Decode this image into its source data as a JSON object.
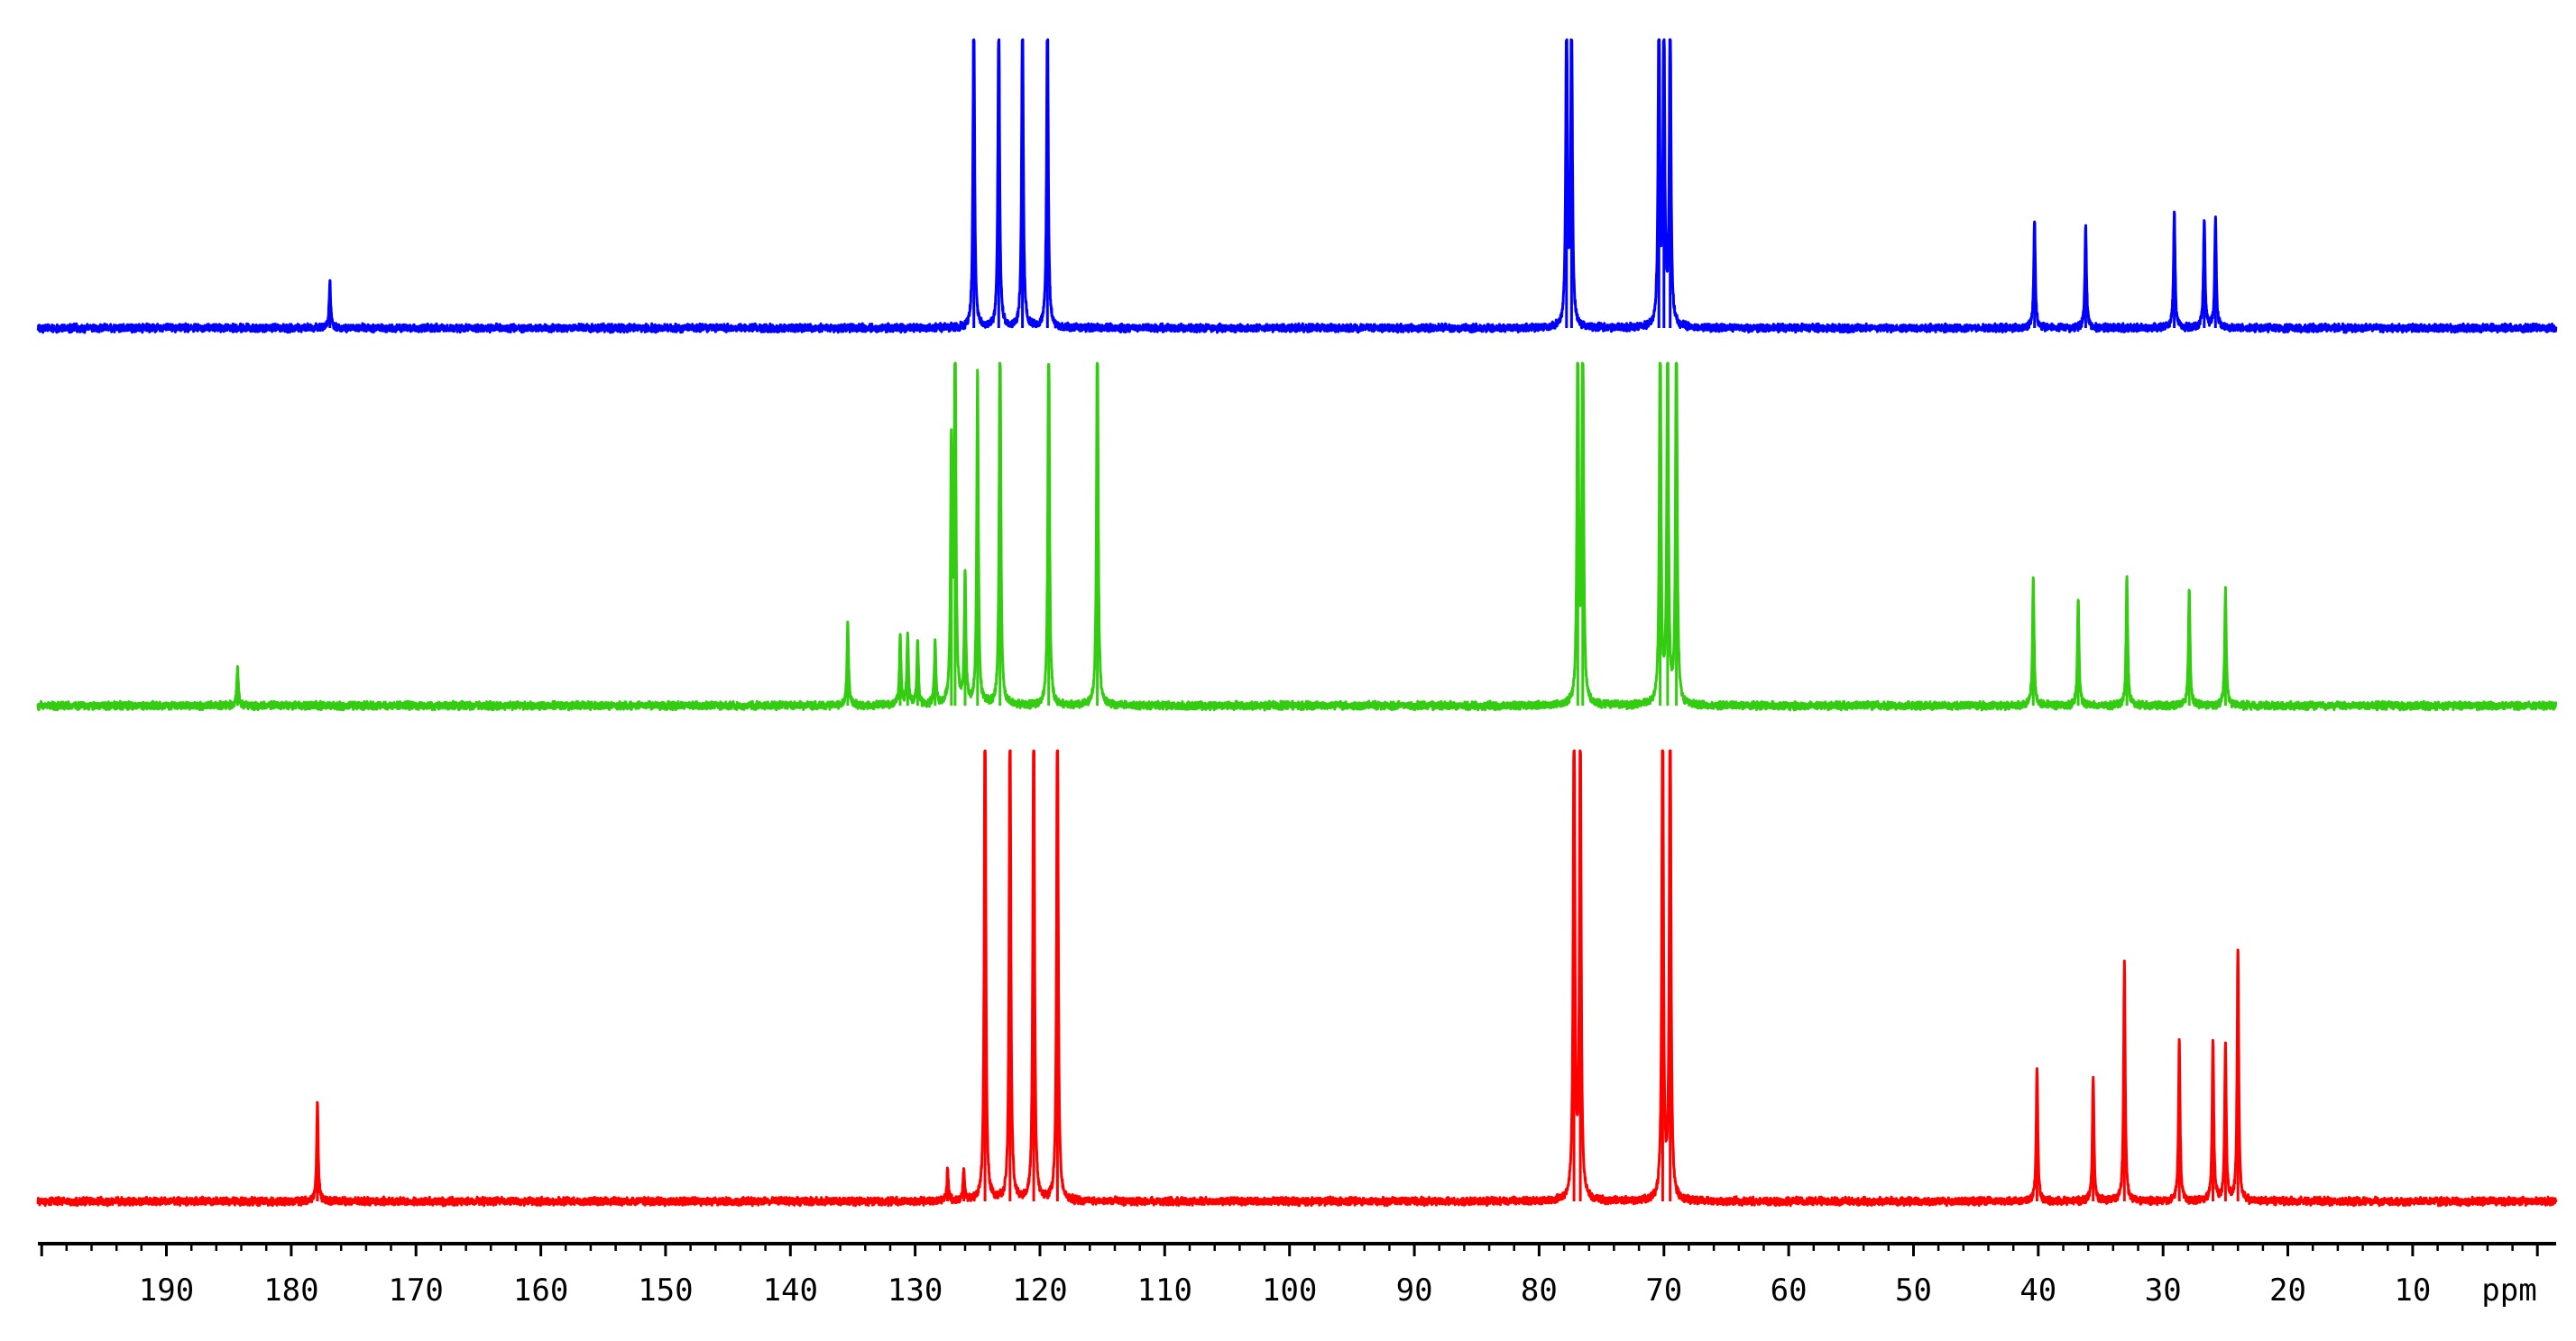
{
  "chart_data": {
    "type": "line",
    "title": "",
    "xlabel": "ppm",
    "ylabel": "",
    "x_axis_reversed": true,
    "xlim": [
      200.3,
      -1.5
    ],
    "major_ticks": [
      190,
      180,
      170,
      160,
      150,
      140,
      130,
      120,
      110,
      100,
      90,
      80,
      70,
      60,
      50,
      40,
      30,
      20,
      10
    ],
    "tick_labels": [
      "190",
      "180",
      "170",
      "160",
      "150",
      "140",
      "130",
      "120",
      "110",
      "100",
      "90",
      "80",
      "70",
      "60",
      "50",
      "40",
      "30",
      "20",
      "10"
    ],
    "unit_label": "ppm",
    "grid": false,
    "legend": "none",
    "series": [
      {
        "color": "#0000ff",
        "peaks": [
          {
            "ppm": 176.9,
            "height": 0.14
          },
          {
            "ppm": 125.3,
            "height": 1.0
          },
          {
            "ppm": 123.3,
            "height": 1.0
          },
          {
            "ppm": 121.4,
            "height": 1.0
          },
          {
            "ppm": 119.4,
            "height": 1.0
          },
          {
            "ppm": 77.8,
            "height": 1.0
          },
          {
            "ppm": 77.4,
            "height": 1.0
          },
          {
            "ppm": 70.4,
            "height": 1.0
          },
          {
            "ppm": 70.0,
            "height": 1.0
          },
          {
            "ppm": 69.5,
            "height": 1.0
          },
          {
            "ppm": 40.3,
            "height": 0.33
          },
          {
            "ppm": 36.2,
            "height": 0.31
          },
          {
            "ppm": 29.1,
            "height": 0.35
          },
          {
            "ppm": 26.7,
            "height": 0.33
          },
          {
            "ppm": 25.8,
            "height": 0.33
          }
        ]
      },
      {
        "color": "#33cc11",
        "peaks": [
          {
            "ppm": 184.3,
            "height": 0.1
          },
          {
            "ppm": 135.4,
            "height": 0.21
          },
          {
            "ppm": 131.2,
            "height": 0.18
          },
          {
            "ppm": 130.6,
            "height": 0.18
          },
          {
            "ppm": 129.8,
            "height": 0.16
          },
          {
            "ppm": 128.4,
            "height": 0.16
          },
          {
            "ppm": 127.1,
            "height": 0.64
          },
          {
            "ppm": 126.8,
            "height": 1.0
          },
          {
            "ppm": 126.0,
            "height": 0.33
          },
          {
            "ppm": 125.0,
            "height": 0.85
          },
          {
            "ppm": 123.2,
            "height": 1.0
          },
          {
            "ppm": 119.3,
            "height": 1.0
          },
          {
            "ppm": 115.4,
            "height": 1.0
          },
          {
            "ppm": 76.9,
            "height": 1.0
          },
          {
            "ppm": 76.5,
            "height": 1.0
          },
          {
            "ppm": 70.3,
            "height": 1.0
          },
          {
            "ppm": 69.7,
            "height": 1.0
          },
          {
            "ppm": 69.0,
            "height": 1.0
          },
          {
            "ppm": 40.4,
            "height": 0.32
          },
          {
            "ppm": 36.8,
            "height": 0.27
          },
          {
            "ppm": 32.9,
            "height": 0.33
          },
          {
            "ppm": 27.9,
            "height": 0.3
          },
          {
            "ppm": 25.0,
            "height": 0.29
          }
        ]
      },
      {
        "color": "#ff0000",
        "peaks": [
          {
            "ppm": 177.9,
            "height": 0.19
          },
          {
            "ppm": 127.4,
            "height": 0.06
          },
          {
            "ppm": 126.1,
            "height": 0.06
          },
          {
            "ppm": 124.4,
            "height": 1.0
          },
          {
            "ppm": 122.4,
            "height": 1.0
          },
          {
            "ppm": 120.5,
            "height": 1.0
          },
          {
            "ppm": 118.6,
            "height": 1.0
          },
          {
            "ppm": 77.2,
            "height": 1.0
          },
          {
            "ppm": 76.7,
            "height": 1.0
          },
          {
            "ppm": 70.1,
            "height": 1.0
          },
          {
            "ppm": 69.5,
            "height": 1.0
          },
          {
            "ppm": 40.1,
            "height": 0.26
          },
          {
            "ppm": 35.6,
            "height": 0.24
          },
          {
            "ppm": 33.1,
            "height": 0.46
          },
          {
            "ppm": 28.7,
            "height": 0.31
          },
          {
            "ppm": 26.0,
            "height": 0.31
          },
          {
            "ppm": 25.0,
            "height": 0.3
          },
          {
            "ppm": 24.0,
            "height": 0.49
          }
        ]
      }
    ]
  }
}
